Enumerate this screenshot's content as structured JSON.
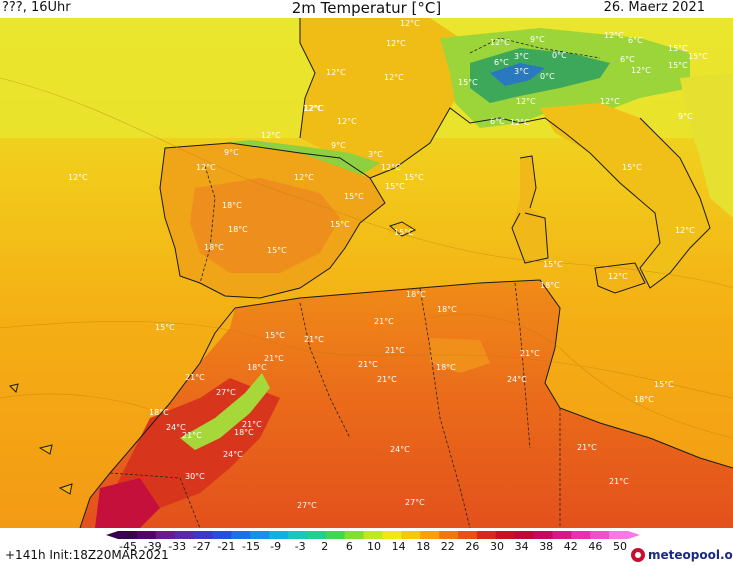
{
  "header": {
    "left": "???, 16Uhr",
    "title": "2m Temperatur [°C]",
    "date": "26. Maerz 2021"
  },
  "footer": {
    "run": "+141h  Init:18Z20MAR2021",
    "brand": "meteopool.org"
  },
  "legend": {
    "ticks": [
      "-45",
      "-39",
      "-33",
      "-27",
      "-21",
      "-15",
      "-9",
      "-3",
      "2",
      "6",
      "10",
      "14",
      "18",
      "22",
      "26",
      "30",
      "34",
      "38",
      "42",
      "46",
      "50"
    ],
    "colors": [
      "#3a0050",
      "#55006e",
      "#6a1a8c",
      "#5a2aa8",
      "#3c38c8",
      "#2450e0",
      "#1c70e8",
      "#1890e8",
      "#10b0e0",
      "#18c8c0",
      "#20d090",
      "#40d850",
      "#80e030",
      "#c0e820",
      "#f0e810",
      "#f8c808",
      "#f8a008",
      "#f07810",
      "#e85018",
      "#d82818",
      "#c81020",
      "#c00838",
      "#c80860",
      "#d81888",
      "#e830b0",
      "#f050d0",
      "#f878e8"
    ]
  },
  "map": {
    "labels": [
      {
        "text": "12°C"
      },
      {
        "text": "12°C"
      },
      {
        "text": "12°C"
      },
      {
        "text": "12°C"
      },
      {
        "text": "12°C"
      },
      {
        "text": "6°C"
      },
      {
        "text": "15°C"
      },
      {
        "text": "15°C"
      },
      {
        "text": "12°C"
      },
      {
        "text": "12°C"
      },
      {
        "text": "3°C"
      },
      {
        "text": "0°C"
      },
      {
        "text": "6°C"
      },
      {
        "text": "9°C"
      },
      {
        "text": "0°C"
      },
      {
        "text": "3°C"
      },
      {
        "text": "6°C"
      },
      {
        "text": "15°C"
      },
      {
        "text": "12°C"
      },
      {
        "text": "12°C"
      },
      {
        "text": "12°C"
      },
      {
        "text": "6°C"
      },
      {
        "text": "12°C"
      },
      {
        "text": "15°C"
      },
      {
        "text": "12°C"
      },
      {
        "text": "9°C"
      },
      {
        "text": "12°C"
      },
      {
        "text": "12°C"
      },
      {
        "text": "12°C"
      },
      {
        "text": "9°C"
      },
      {
        "text": "9°C"
      },
      {
        "text": "3°C"
      },
      {
        "text": "15°C"
      },
      {
        "text": "12°C"
      },
      {
        "text": "15°C"
      },
      {
        "text": "15°C"
      },
      {
        "text": "12°C"
      },
      {
        "text": "12°C"
      },
      {
        "text": "15°C"
      },
      {
        "text": "18°C"
      },
      {
        "text": "15°C"
      },
      {
        "text": "15°C"
      },
      {
        "text": "18°C"
      },
      {
        "text": "18°C"
      },
      {
        "text": "15°C"
      },
      {
        "text": "12°C"
      },
      {
        "text": "15°C"
      },
      {
        "text": "12°C"
      },
      {
        "text": "15°C"
      },
      {
        "text": "18°C"
      },
      {
        "text": "18°C"
      },
      {
        "text": "15°C"
      },
      {
        "text": "18°C"
      },
      {
        "text": "21°C"
      },
      {
        "text": "21°C"
      },
      {
        "text": "18°C"
      },
      {
        "text": "21°C"
      },
      {
        "text": "18°C"
      },
      {
        "text": "21°C"
      },
      {
        "text": "21°C"
      },
      {
        "text": "21°C"
      },
      {
        "text": "21°C"
      },
      {
        "text": "21°C"
      },
      {
        "text": "24°C"
      },
      {
        "text": "27°C"
      },
      {
        "text": "15°C"
      },
      {
        "text": "18°C"
      },
      {
        "text": "18°C"
      },
      {
        "text": "24°C"
      },
      {
        "text": "21°C"
      },
      {
        "text": "21°C"
      },
      {
        "text": "18°C"
      },
      {
        "text": "24°C"
      },
      {
        "text": "21°C"
      },
      {
        "text": "30°C"
      },
      {
        "text": "24°C"
      },
      {
        "text": "21°C"
      },
      {
        "text": "27°C"
      },
      {
        "text": "27°C"
      }
    ]
  }
}
